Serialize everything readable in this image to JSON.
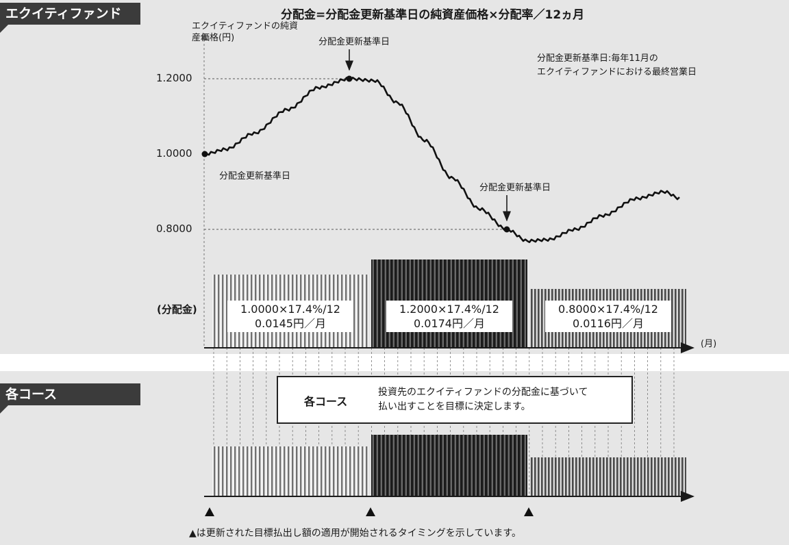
{
  "top_section": {
    "tag": "エクイティファンド",
    "formula": "分配金=分配金更新基準日の純資産価格×分配率／12ヵ月",
    "y_axis_label": "エクイティファンドの純資産価格(円)",
    "ticks": [
      "1.2000",
      "1.0000",
      "0.8000"
    ],
    "annotations": [
      "分配金更新基準日",
      "分配金更新基準日",
      "分配金更新基準日"
    ],
    "note_line1": "分配金更新基準日:毎年11月の",
    "note_line2": "エクイティファンドにおける最終営業日",
    "dividend_label": "(分配金)",
    "month_label": "(月)",
    "periods": [
      {
        "formula": "1.0000×17.4%/12",
        "amount": "0.0145円／月"
      },
      {
        "formula": "1.2000×17.4%/12",
        "amount": "0.0174円／月"
      },
      {
        "formula": "0.8000×17.4%/12",
        "amount": "0.0116円／月"
      }
    ]
  },
  "bottom_section": {
    "tag": "各コース",
    "box_label": "各コース",
    "box_line1": "投資先のエクイティファンドの分配金に基づいて",
    "box_line2": "払い出すことを目標に決定します。",
    "footnote": "▲は更新された目標払出し額の適用が開始されるタイミングを示しています。"
  },
  "colors": {
    "background_panel": "#e6e6e6",
    "dark": "#1a1a1a",
    "tag": "#3b3b3b"
  }
}
